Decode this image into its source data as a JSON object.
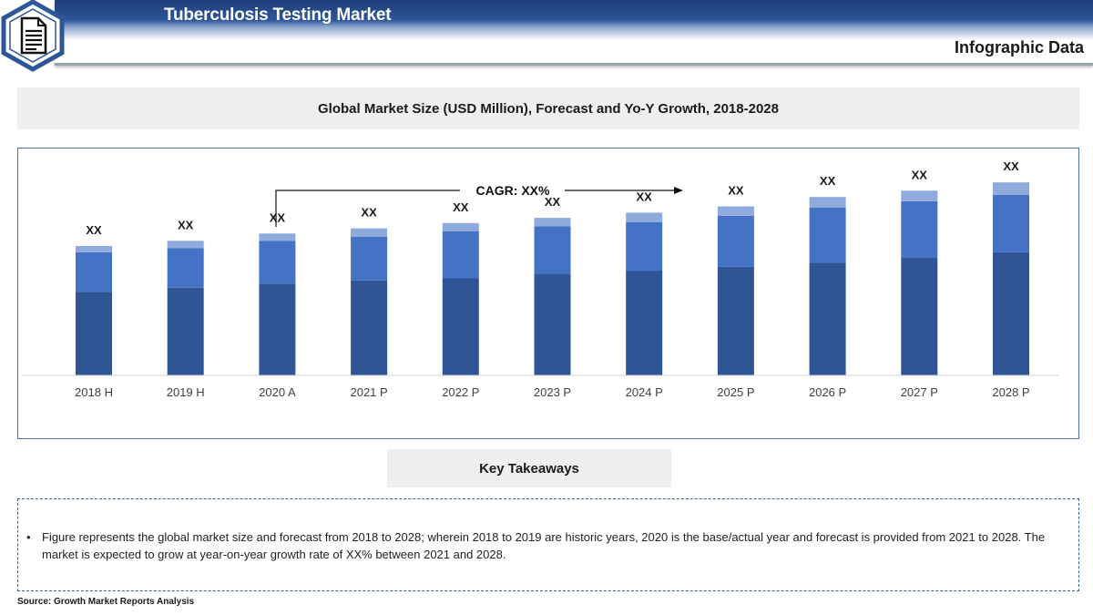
{
  "header": {
    "title": "Tuberculosis Testing Market",
    "subtitle": "Infographic Data",
    "logo_icon": "document-icon"
  },
  "chart_section": {
    "title": "Global Market Size (USD Million), Forecast and Yo-Y Growth, 2018-2028",
    "cagr_label": "CAGR: XX%"
  },
  "chart_data": {
    "type": "bar",
    "stacked": true,
    "categories": [
      "2018 H",
      "2019 H",
      "2020 A",
      "2021 P",
      "2022 P",
      "2023 P",
      "2024 P",
      "2025 P",
      "2026 P",
      "2027 P",
      "2028 P"
    ],
    "data_labels": [
      "XX",
      "XX",
      "XX",
      "XX",
      "XX",
      "XX",
      "XX",
      "XX",
      "XX",
      "XX",
      "XX"
    ],
    "series": [
      {
        "values": [
          80,
          84,
          88,
          91,
          93,
          97,
          100,
          104,
          108,
          113,
          118
        ],
        "color": "#2f5597"
      },
      {
        "values": [
          38,
          38,
          41,
          42,
          45,
          46,
          47,
          49,
          53,
          54,
          55
        ],
        "color": "#4472c4"
      },
      {
        "values": [
          6,
          7,
          7,
          8,
          8,
          8,
          9,
          9,
          10,
          10,
          12
        ],
        "color": "#8faadc"
      }
    ],
    "ylim": [
      0,
      200
    ],
    "grid": false,
    "legend": "none"
  },
  "takeaways": {
    "title": "Key Takeaways",
    "bullet": "•",
    "text": "Figure represents the global market size and forecast from 2018 to 2028; wherein 2018 to 2019 are historic years, 2020 is the base/actual year and forecast is provided from 2021 to 2028. The market is expected to grow at year-on-year growth rate of XX% between 2021 and 2028."
  },
  "source": "Source: Growth Market Reports Analysis"
}
